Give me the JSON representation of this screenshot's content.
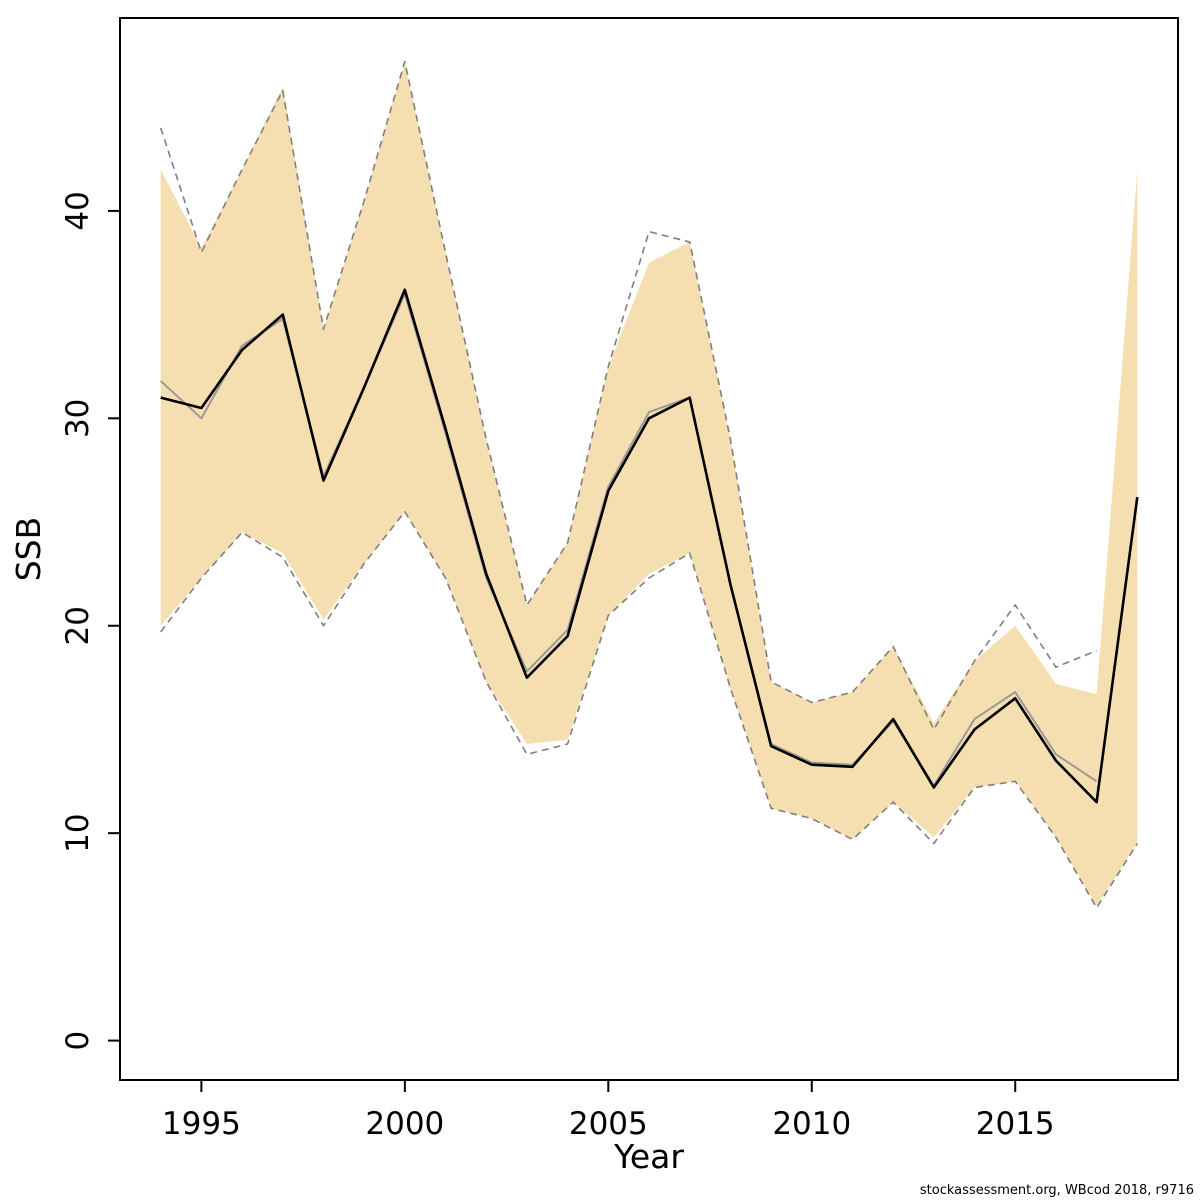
{
  "footer": {
    "credit": "stockassessment.org, WBcod 2018, r9716"
  },
  "chart_data": {
    "type": "line",
    "title": "",
    "xlabel": "Year",
    "ylabel": "SSB",
    "xlim": [
      1993.0,
      2019.0
    ],
    "ylim": [
      -1.9,
      49.3
    ],
    "x_ticks": [
      1995,
      2000,
      2005,
      2010,
      2015
    ],
    "y_ticks": [
      0,
      10,
      20,
      30,
      40
    ],
    "grid": false,
    "legend": "none",
    "x": [
      1994,
      1995,
      1996,
      1997,
      1998,
      1999,
      2000,
      2001,
      2002,
      2003,
      2004,
      2005,
      2006,
      2007,
      2008,
      2009,
      2010,
      2011,
      2012,
      2013,
      2014,
      2015,
      2016,
      2017,
      2018
    ],
    "band": {
      "name": "confidence-band",
      "color": "#f5dfb1",
      "upper": [
        42,
        38.2,
        42,
        46,
        34.3,
        40.5,
        47.2,
        38,
        29,
        21,
        24,
        32.5,
        37.5,
        38.5,
        29,
        17.3,
        16.3,
        16.8,
        19,
        15.3,
        18.3,
        20,
        17.2,
        16.7,
        42
      ],
      "lower": [
        20,
        22.3,
        24.5,
        23.5,
        20.3,
        23,
        25.5,
        22.3,
        17.3,
        14.3,
        14.5,
        20.5,
        22.5,
        23.5,
        17,
        11.2,
        10.7,
        9.7,
        11.5,
        9.8,
        12.2,
        12.5,
        9.8,
        6.5,
        9.5
      ]
    },
    "series": [
      {
        "name": "upper-ci-dashed",
        "color": "#7f7f7f",
        "style": "dashed",
        "width": 1.6,
        "values": [
          44,
          38,
          42,
          45.8,
          34.3,
          40.5,
          47.2,
          38,
          29,
          21,
          24,
          32.5,
          39,
          38.5,
          29,
          17.3,
          16.3,
          16.8,
          19,
          15,
          18.3,
          21,
          18,
          18.8,
          null
        ]
      },
      {
        "name": "lower-ci-dashed",
        "color": "#7f7f7f",
        "style": "dashed",
        "width": 1.6,
        "values": [
          19.7,
          22.3,
          24.5,
          23.3,
          20,
          23,
          25.5,
          22.3,
          17.3,
          13.8,
          14.3,
          20.5,
          22.3,
          23.5,
          17,
          11.2,
          10.7,
          9.7,
          11.5,
          9.5,
          12.2,
          12.5,
          9.8,
          6.4,
          9.5
        ]
      },
      {
        "name": "ssb-alt-estimate",
        "color": "#999999",
        "style": "solid",
        "width": 2,
        "values": [
          31.8,
          30,
          33.5,
          34.8,
          27.2,
          31.5,
          36,
          29.3,
          22.3,
          17.8,
          19.8,
          26.7,
          30.3,
          31,
          22,
          14.3,
          13.4,
          13.3,
          15.4,
          12.3,
          15.5,
          16.8,
          13.8,
          12.5,
          null
        ]
      },
      {
        "name": "ssb-estimate",
        "color": "#000000",
        "style": "solid",
        "width": 2.6,
        "values": [
          31,
          30.5,
          33.3,
          35,
          27,
          31.5,
          36.2,
          29.5,
          22.5,
          17.5,
          19.5,
          26.5,
          30,
          31,
          22,
          14.2,
          13.3,
          13.2,
          15.5,
          12.2,
          15,
          16.5,
          13.5,
          11.5,
          26.2
        ]
      }
    ]
  }
}
